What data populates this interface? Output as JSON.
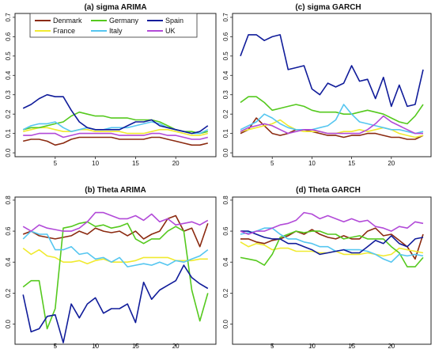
{
  "chart_data": [
    {
      "type": "line",
      "title": "(a) sigma ARIMA",
      "x": [
        1,
        2,
        3,
        4,
        5,
        6,
        7,
        8,
        9,
        10,
        11,
        12,
        13,
        14,
        15,
        16,
        17,
        18,
        19,
        20,
        21,
        22,
        23,
        24
      ],
      "xticks": [
        5,
        10,
        15,
        20
      ],
      "xlim": [
        0,
        25
      ],
      "ylim": [
        -0.02,
        0.72
      ],
      "yticks": [
        0.0,
        0.1,
        0.2,
        0.3,
        0.4,
        0.5,
        0.6,
        0.7
      ],
      "ytick_labels": [
        "0.0",
        "0.1",
        "0.2",
        "0.3",
        "0.4",
        "0.5",
        "0.6",
        "0.7"
      ],
      "grid": false,
      "series": [
        {
          "name": "Denmark",
          "color": "#8b2a10",
          "values": [
            0.06,
            0.07,
            0.07,
            0.06,
            0.04,
            0.05,
            0.07,
            0.08,
            0.08,
            0.08,
            0.08,
            0.08,
            0.07,
            0.07,
            0.07,
            0.07,
            0.08,
            0.08,
            0.07,
            0.06,
            0.05,
            0.04,
            0.04,
            0.05
          ]
        },
        {
          "name": "France",
          "color": "#f0ea30",
          "values": [
            0.11,
            0.12,
            0.13,
            0.13,
            0.12,
            0.11,
            0.11,
            0.12,
            0.12,
            0.11,
            0.11,
            0.11,
            0.11,
            0.1,
            0.1,
            0.1,
            0.11,
            0.12,
            0.12,
            0.11,
            0.1,
            0.09,
            0.09,
            0.1
          ]
        },
        {
          "name": "Germany",
          "color": "#55c91e",
          "values": [
            0.12,
            0.13,
            0.13,
            0.14,
            0.15,
            0.16,
            0.19,
            0.21,
            0.2,
            0.19,
            0.19,
            0.18,
            0.18,
            0.18,
            0.17,
            0.17,
            0.17,
            0.16,
            0.14,
            0.12,
            0.11,
            0.11,
            0.1,
            0.11
          ]
        },
        {
          "name": "Italy",
          "color": "#55c6f0",
          "values": [
            0.12,
            0.14,
            0.15,
            0.15,
            0.16,
            0.13,
            0.11,
            0.12,
            0.13,
            0.12,
            0.12,
            0.13,
            0.13,
            0.13,
            0.14,
            0.15,
            0.16,
            0.15,
            0.13,
            0.12,
            0.11,
            0.1,
            0.1,
            0.12
          ]
        },
        {
          "name": "Spain",
          "color": "#101c9a",
          "values": [
            0.23,
            0.25,
            0.28,
            0.3,
            0.29,
            0.29,
            0.22,
            0.16,
            0.13,
            0.12,
            0.12,
            0.12,
            0.12,
            0.14,
            0.16,
            0.16,
            0.17,
            0.14,
            0.13,
            0.12,
            0.11,
            0.1,
            0.11,
            0.14
          ]
        },
        {
          "name": "UK",
          "color": "#b24ad8",
          "values": [
            0.09,
            0.09,
            0.1,
            0.1,
            0.1,
            0.08,
            0.09,
            0.1,
            0.1,
            0.1,
            0.1,
            0.1,
            0.09,
            0.09,
            0.09,
            0.09,
            0.1,
            0.1,
            0.09,
            0.09,
            0.08,
            0.07,
            0.07,
            0.08
          ]
        }
      ]
    },
    {
      "type": "line",
      "title": "(c) sigma GARCH",
      "x": [
        1,
        2,
        3,
        4,
        5,
        6,
        7,
        8,
        9,
        10,
        11,
        12,
        13,
        14,
        15,
        16,
        17,
        18,
        19,
        20,
        21,
        22,
        23,
        24
      ],
      "xticks": [
        5,
        10,
        15,
        20
      ],
      "xlim": [
        0,
        25
      ],
      "ylim": [
        -0.02,
        0.72
      ],
      "yticks": [
        0.0,
        0.1,
        0.2,
        0.3,
        0.4,
        0.5,
        0.6,
        0.7
      ],
      "ytick_labels": [
        "0.0",
        "0.1",
        "0.2",
        "0.3",
        "0.4",
        "0.5",
        "0.6",
        "0.7"
      ],
      "grid": false,
      "series": [
        {
          "name": "Denmark",
          "color": "#8b2a10",
          "values": [
            0.1,
            0.12,
            0.18,
            0.14,
            0.1,
            0.09,
            0.1,
            0.12,
            0.12,
            0.11,
            0.1,
            0.09,
            0.09,
            0.08,
            0.09,
            0.09,
            0.1,
            0.1,
            0.09,
            0.08,
            0.08,
            0.07,
            0.07,
            0.09
          ]
        },
        {
          "name": "France",
          "color": "#f0ea30",
          "values": [
            0.11,
            0.12,
            0.13,
            0.14,
            0.15,
            0.17,
            0.14,
            0.12,
            0.11,
            0.11,
            0.11,
            0.1,
            0.1,
            0.11,
            0.11,
            0.12,
            0.11,
            0.12,
            0.13,
            0.12,
            0.1,
            0.09,
            0.08,
            0.09
          ]
        },
        {
          "name": "Germany",
          "color": "#55c91e",
          "values": [
            0.26,
            0.29,
            0.29,
            0.26,
            0.22,
            0.23,
            0.24,
            0.25,
            0.24,
            0.22,
            0.21,
            0.21,
            0.21,
            0.2,
            0.2,
            0.21,
            0.22,
            0.21,
            0.2,
            0.18,
            0.16,
            0.15,
            0.19,
            0.25
          ]
        },
        {
          "name": "Italy",
          "color": "#55c6f0",
          "values": [
            0.12,
            0.14,
            0.16,
            0.2,
            0.18,
            0.15,
            0.13,
            0.12,
            0.12,
            0.12,
            0.13,
            0.14,
            0.17,
            0.25,
            0.2,
            0.16,
            0.15,
            0.14,
            0.13,
            0.12,
            0.12,
            0.11,
            0.1,
            0.11
          ]
        },
        {
          "name": "Spain",
          "color": "#101c9a",
          "values": [
            0.5,
            0.61,
            0.61,
            0.58,
            0.6,
            0.61,
            0.43,
            0.44,
            0.45,
            0.33,
            0.3,
            0.36,
            0.34,
            0.36,
            0.45,
            0.37,
            0.38,
            0.28,
            0.39,
            0.24,
            0.35,
            0.24,
            0.25,
            0.43
          ]
        },
        {
          "name": "UK",
          "color": "#b24ad8",
          "values": [
            0.11,
            0.13,
            0.14,
            0.15,
            0.14,
            0.12,
            0.1,
            0.11,
            0.12,
            0.12,
            0.11,
            0.1,
            0.1,
            0.1,
            0.1,
            0.1,
            0.12,
            0.15,
            0.19,
            0.16,
            0.14,
            0.12,
            0.1,
            0.1
          ]
        }
      ]
    },
    {
      "type": "line",
      "title": "(b) Theta ARIMA",
      "x": [
        1,
        2,
        3,
        4,
        5,
        6,
        7,
        8,
        9,
        10,
        11,
        12,
        13,
        14,
        15,
        16,
        17,
        18,
        19,
        20,
        21,
        22,
        23,
        24
      ],
      "xticks": [
        5,
        10,
        15,
        20
      ],
      "xlim": [
        0,
        25
      ],
      "ylim": [
        -0.13,
        0.82
      ],
      "yticks": [
        0.0,
        0.2,
        0.4,
        0.6,
        0.8
      ],
      "ytick_labels": [
        "0.0",
        "0.2",
        "0.4",
        "0.6",
        "0.8"
      ],
      "grid": false,
      "series": [
        {
          "name": "Denmark",
          "color": "#8b2a10",
          "values": [
            0.58,
            0.6,
            0.57,
            0.56,
            0.55,
            0.56,
            0.57,
            0.6,
            0.58,
            0.62,
            0.6,
            0.59,
            0.6,
            0.57,
            0.6,
            0.55,
            0.58,
            0.6,
            0.68,
            0.7,
            0.6,
            0.62,
            0.5,
            0.65
          ]
        },
        {
          "name": "France",
          "color": "#f0ea30",
          "values": [
            0.49,
            0.45,
            0.48,
            0.44,
            0.43,
            0.4,
            0.4,
            0.41,
            0.39,
            0.41,
            0.42,
            0.4,
            0.4,
            0.4,
            0.41,
            0.43,
            0.43,
            0.43,
            0.43,
            0.41,
            0.41,
            0.41,
            0.42,
            0.42
          ]
        },
        {
          "name": "Germany",
          "color": "#55c91e",
          "values": [
            0.24,
            0.28,
            0.28,
            -0.03,
            0.1,
            0.62,
            0.63,
            0.65,
            0.66,
            0.63,
            0.64,
            0.62,
            0.63,
            0.65,
            0.55,
            0.52,
            0.55,
            0.55,
            0.6,
            0.63,
            0.6,
            0.22,
            0.02,
            0.2
          ]
        },
        {
          "name": "Italy",
          "color": "#55c6f0",
          "values": [
            0.55,
            0.6,
            0.58,
            0.58,
            0.48,
            0.48,
            0.5,
            0.45,
            0.46,
            0.42,
            0.43,
            0.4,
            0.43,
            0.37,
            0.38,
            0.39,
            0.38,
            0.4,
            0.38,
            0.41,
            0.4,
            0.42,
            0.44,
            0.48
          ]
        },
        {
          "name": "Spain",
          "color": "#101c9a",
          "values": [
            0.19,
            -0.05,
            -0.03,
            0.05,
            0.06,
            -0.12,
            0.13,
            0.04,
            0.13,
            0.17,
            0.07,
            0.1,
            0.1,
            0.13,
            0.01,
            0.27,
            0.16,
            0.22,
            0.25,
            0.28,
            0.38,
            0.3,
            0.26,
            0.23
          ]
        },
        {
          "name": "UK",
          "color": "#b24ad8",
          "values": [
            0.63,
            0.6,
            0.64,
            0.62,
            0.61,
            0.6,
            0.6,
            0.62,
            0.66,
            0.72,
            0.72,
            0.7,
            0.68,
            0.68,
            0.7,
            0.67,
            0.71,
            0.66,
            0.68,
            0.64,
            0.65,
            0.66,
            0.64,
            0.67
          ]
        }
      ]
    },
    {
      "type": "line",
      "title": "(d) Theta GARCH",
      "x": [
        1,
        2,
        3,
        4,
        5,
        6,
        7,
        8,
        9,
        10,
        11,
        12,
        13,
        14,
        15,
        16,
        17,
        18,
        19,
        20,
        21,
        22,
        23,
        24
      ],
      "xticks": [
        5,
        10,
        15,
        20
      ],
      "xlim": [
        0,
        25
      ],
      "ylim": [
        -0.13,
        0.82
      ],
      "yticks": [
        0.0,
        0.2,
        0.4,
        0.6,
        0.8
      ],
      "ytick_labels": [
        "0.0",
        "0.2",
        "0.4",
        "0.6",
        "0.8"
      ],
      "grid": false,
      "series": [
        {
          "name": "Denmark",
          "color": "#8b2a10",
          "values": [
            0.55,
            0.55,
            0.53,
            0.52,
            0.54,
            0.55,
            0.57,
            0.6,
            0.58,
            0.61,
            0.58,
            0.56,
            0.55,
            0.57,
            0.55,
            0.55,
            0.6,
            0.62,
            0.57,
            0.58,
            0.54,
            0.5,
            0.42,
            0.58
          ]
        },
        {
          "name": "France",
          "color": "#f0ea30",
          "values": [
            0.53,
            0.5,
            0.52,
            0.51,
            0.48,
            0.49,
            0.49,
            0.47,
            0.47,
            0.47,
            0.46,
            0.46,
            0.47,
            0.45,
            0.45,
            0.45,
            0.46,
            0.45,
            0.44,
            0.45,
            0.49,
            0.48,
            0.47,
            0.46
          ]
        },
        {
          "name": "Germany",
          "color": "#55c91e",
          "values": [
            0.43,
            0.42,
            0.41,
            0.38,
            0.45,
            0.56,
            0.58,
            0.6,
            0.59,
            0.6,
            0.6,
            0.58,
            0.58,
            0.55,
            0.56,
            0.57,
            0.55,
            0.55,
            0.55,
            0.5,
            0.46,
            0.37,
            0.37,
            0.43
          ]
        },
        {
          "name": "Italy",
          "color": "#55c6f0",
          "values": [
            0.58,
            0.59,
            0.6,
            0.62,
            0.62,
            0.58,
            0.55,
            0.55,
            0.53,
            0.52,
            0.5,
            0.5,
            0.47,
            0.48,
            0.48,
            0.48,
            0.47,
            0.45,
            0.42,
            0.4,
            0.45,
            0.44,
            0.45,
            0.44
          ]
        },
        {
          "name": "Spain",
          "color": "#101c9a",
          "values": [
            0.6,
            0.6,
            0.58,
            0.56,
            0.55,
            0.55,
            0.52,
            0.52,
            0.5,
            0.48,
            0.45,
            0.46,
            0.47,
            0.48,
            0.46,
            0.46,
            0.5,
            0.54,
            0.52,
            0.57,
            0.52,
            0.5,
            0.55,
            0.56
          ]
        },
        {
          "name": "UK",
          "color": "#b24ad8",
          "values": [
            0.6,
            0.58,
            0.6,
            0.6,
            0.62,
            0.64,
            0.65,
            0.67,
            0.72,
            0.71,
            0.68,
            0.7,
            0.68,
            0.66,
            0.68,
            0.66,
            0.67,
            0.63,
            0.62,
            0.6,
            0.63,
            0.62,
            0.66,
            0.65
          ]
        }
      ]
    }
  ],
  "legend": {
    "placement": "top-left",
    "entries": [
      {
        "label": "Denmark",
        "color": "#8b2a10"
      },
      {
        "label": "Germany",
        "color": "#55c91e"
      },
      {
        "label": "Spain",
        "color": "#101c9a"
      },
      {
        "label": "France",
        "color": "#f0ea30"
      },
      {
        "label": "Italy",
        "color": "#55c6f0"
      },
      {
        "label": "UK",
        "color": "#b24ad8"
      }
    ]
  }
}
